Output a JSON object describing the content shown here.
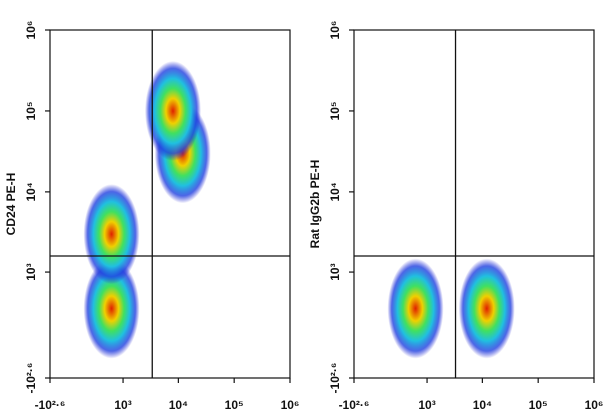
{
  "chart_data": [
    {
      "type": "scatter",
      "y_label": "CD24 PE-H",
      "x": [
        600,
        600,
        12000,
        8000
      ],
      "y": [
        300,
        3000,
        30000,
        100000
      ],
      "xlim": [
        -398,
        1000000
      ],
      "ylim": [
        -398,
        1000000
      ],
      "xticks": [
        {
          "value": -398,
          "label": "-10²·⁶"
        },
        {
          "value": 1000,
          "label": "10³"
        },
        {
          "value": 10000,
          "label": "10⁴"
        },
        {
          "value": 100000,
          "label": "10⁵"
        },
        {
          "value": 1000000,
          "label": "10⁶"
        }
      ],
      "yticks": [
        {
          "value": -398,
          "label": "-10²·⁶"
        },
        {
          "value": 1000,
          "label": "10³"
        },
        {
          "value": 10000,
          "label": "10⁴"
        },
        {
          "value": 100000,
          "label": "10⁵"
        },
        {
          "value": 1000000,
          "label": "10⁶"
        }
      ],
      "gate_x": 3400,
      "gate_y": 1600
    },
    {
      "type": "scatter",
      "y_label": "Rat IgG2b PE-H",
      "x": [
        600,
        12000
      ],
      "y": [
        300,
        300
      ],
      "xlim": [
        -398,
        1000000
      ],
      "ylim": [
        -398,
        1000000
      ],
      "xticks": [
        {
          "value": -398,
          "label": "-10²·⁶"
        },
        {
          "value": 1000,
          "label": "10³"
        },
        {
          "value": 10000,
          "label": "10⁴"
        },
        {
          "value": 100000,
          "label": "10⁵"
        },
        {
          "value": 1000000,
          "label": "10⁶"
        }
      ],
      "yticks": [
        {
          "value": -398,
          "label": "-10²·⁶"
        },
        {
          "value": 1000,
          "label": "10³"
        },
        {
          "value": 10000,
          "label": "10⁴"
        },
        {
          "value": 100000,
          "label": "10⁵"
        },
        {
          "value": 1000000,
          "label": "10⁶"
        }
      ],
      "gate_x": 3300,
      "gate_y": 1600
    }
  ]
}
